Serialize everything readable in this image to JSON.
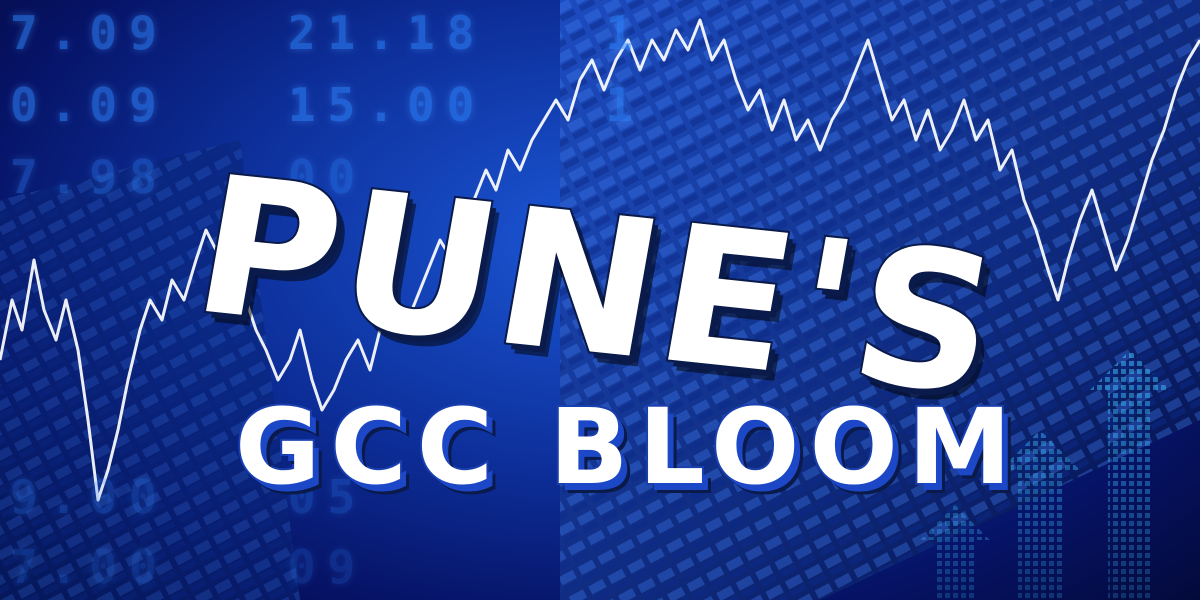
{
  "title": {
    "line1": "PUNE'S",
    "line2": "GCC BLOOM"
  },
  "ticker": {
    "rows": [
      "7.09   21.18   1",
      "0.09   15.00   1",
      "7.98   00",
      "9.00   05",
      "7.00   09"
    ]
  },
  "colors": {
    "background": "#0d2f9a",
    "graph_line": "#ffffff",
    "arrows": "#2fb4ff",
    "text_fill": "#ffffff",
    "text_shadow": "#1c47c7"
  }
}
